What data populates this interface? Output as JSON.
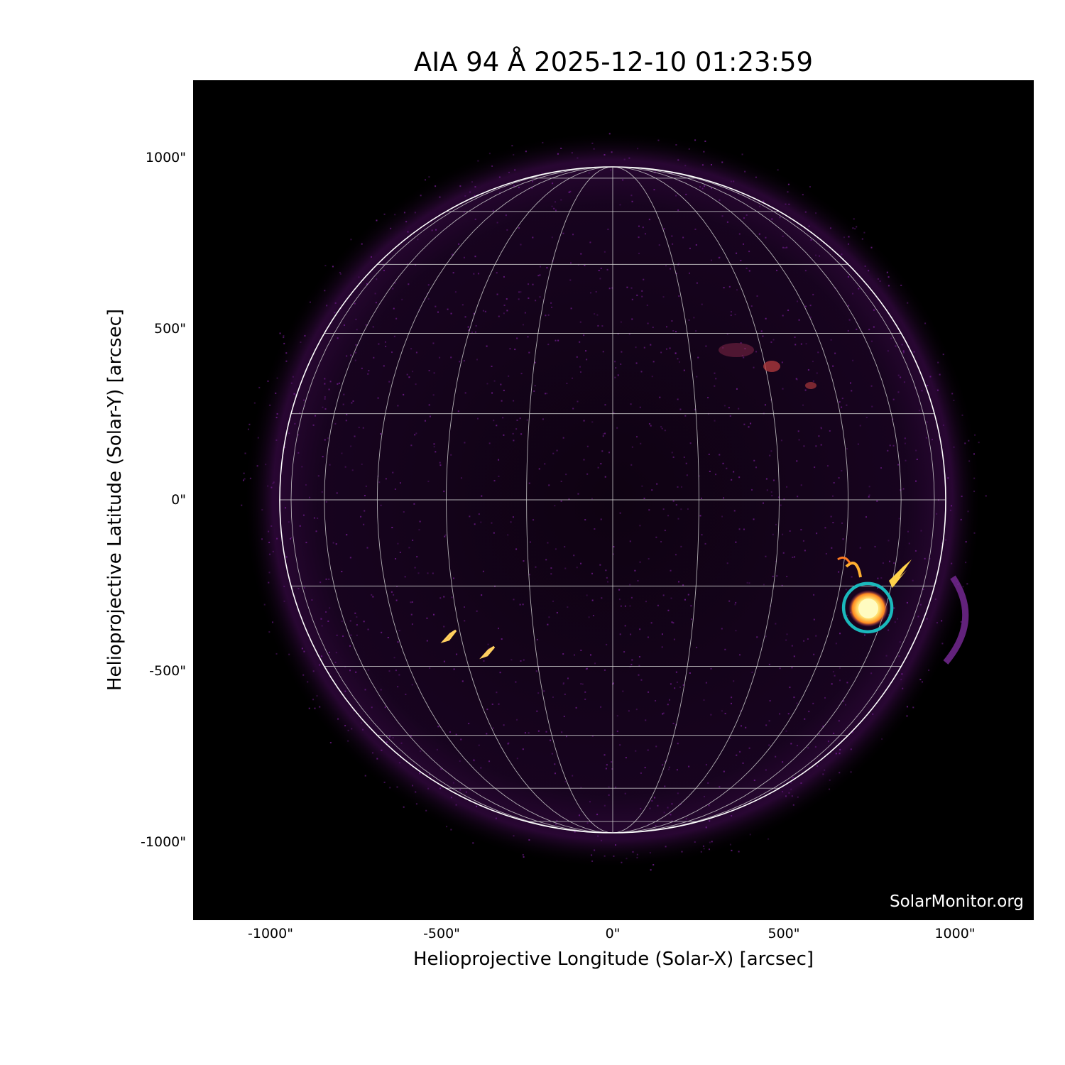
{
  "title": "AIA 94 Å 2025-12-10 01:23:59",
  "xlabel": "Helioprojective Longitude (Solar-X) [arcsec]",
  "ylabel": "Helioprojective Latitude (Solar-Y) [arcsec]",
  "x_ticks": [
    {
      "value": -1000,
      "label": "-1000\""
    },
    {
      "value": -500,
      "label": "-500\""
    },
    {
      "value": 0,
      "label": "0\""
    },
    {
      "value": 500,
      "label": "500\""
    },
    {
      "value": 1000,
      "label": "1000\""
    }
  ],
  "y_ticks": [
    {
      "value": 1000,
      "label": "1000\""
    },
    {
      "value": 500,
      "label": "500\""
    },
    {
      "value": 0,
      "label": "0\""
    },
    {
      "value": -500,
      "label": "-500\""
    },
    {
      "value": -1000,
      "label": "-1000\""
    }
  ],
  "watermark": "SolarMonitor.org",
  "colors": {
    "background": "#000000",
    "grid": "#cfcfcf",
    "limb": "#ffffff",
    "marker": "#1ab8bc",
    "haze": "#6a1a8a",
    "flare_core": "#fff6a0",
    "flare_edge": "#ff8a1e"
  },
  "grid_spacing_deg": 15,
  "highlight_circle": {
    "x_arcsec": 745,
    "y_arcsec": -315
  }
}
